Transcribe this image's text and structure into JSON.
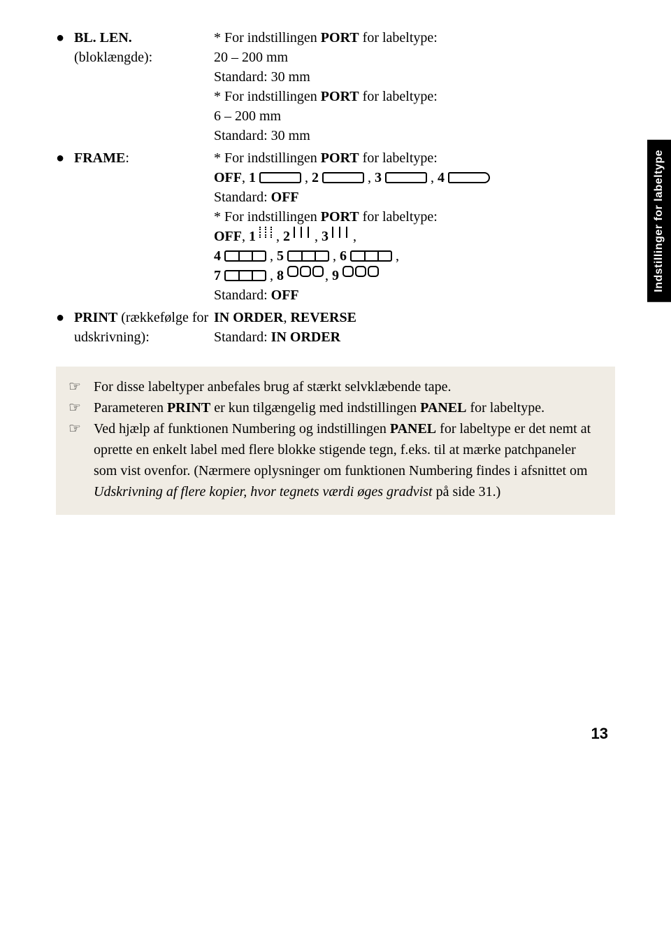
{
  "items": [
    {
      "label_html": "<span class='bold'>BL. LEN.</span> (bloklængde):",
      "lines": [
        "* For indstillingen <span class='bold'>PORT</span> for labeltype:",
        "20 – 200 mm",
        "Standard: 30 mm",
        "* For indstillingen <span class='bold'>PORT</span> for labeltype:",
        "6 – 200 mm",
        "Standard: 30 mm"
      ]
    },
    {
      "label_html": "<span class='bold'>FRAME</span>:",
      "lines": [
        "* For indstillingen <span class='bold'>PORT</span> for labeltype:",
        "<span class='bold'>OFF</span>, <span class='bold'>1</span> <span class='frame f-plain'></span> , <span class='bold'>2</span> <span class='frame f-plain'></span> , <span class='bold'>3</span> <span class='frame f-plain'></span> , <span class='bold'>4</span> <span class='frame f-round-right'></span>",
        "Standard: <span class='bold'>OFF</span>",
        "* For indstillingen <span class='bold'>PORT</span> for labeltype:",
        "<span class='bold'>OFF</span>, <span class='bold'>1</span> <span class='f-3dash'><span></span><span></span><span></span></span>, <span class='bold'>2</span> <span class='f-3bar'><span></span><span></span><span></span></span>, <span class='bold'>3</span> <span class='f-3bar'><span></span><span></span><span></span></span>,",
        "<span class='bold'>4</span> <span class='frame f-3box'></span> , <span class='bold'>5</span> <span class='frame f-3box'></span> , <span class='bold'>6</span> <span class='frame f-3box'></span> ,",
        "<span class='bold'>7</span> <span class='frame f-3box'></span> , <span class='bold'>8</span> <span class='f-3round'><span></span><span></span><span></span></span>, <span class='bold'>9</span> <span class='f-3round'><span></span><span></span><span></span></span>",
        "Standard: <span class='bold'>OFF</span>"
      ]
    },
    {
      "label_html": "<span class='bold'>PRINT</span> (rækkefølge for udskrivning):",
      "lines": [
        "",
        "<span class='bold'>IN ORDER</span>, <span class='bold'>REVERSE</span>",
        "Standard: <span class='bold'>IN ORDER</span>"
      ]
    }
  ],
  "side_tab": "Indstillinger for labeltype",
  "notes": [
    "For disse labeltyper anbefales brug af stærkt selvklæbende tape.",
    "Parameteren <span class='bold'>PRINT</span> er kun tilgængelig med indstillingen <span class='bold'>PANEL</span> for labeltype.",
    "Ved hjælp af funktionen Numbering og indstillingen <span class='bold'>PANEL</span> for labeltype er det nemt at oprette en enkelt label med flere blokke stigende tegn, f.eks. til at mærke patchpaneler som vist ovenfor. (Nærmere oplysninger om funktionen Numbering findes i afsnittet om <span class='italic'>Udskrivning af flere kopier, hvor tegnets værdi øges gradvist</span> på side 31.)"
  ],
  "note_bullet": "☞",
  "bullet": "●",
  "page_number": "13",
  "colors": {
    "text": "#000000",
    "background": "#ffffff",
    "note_bg": "#f0ece4",
    "tab_bg": "#000000",
    "tab_text": "#ffffff"
  },
  "fonts": {
    "body_family": "Times New Roman",
    "body_size_pt": 15,
    "tab_family": "Arial",
    "tab_size_pt": 12,
    "page_num_family": "Arial",
    "page_num_size_pt": 16
  }
}
